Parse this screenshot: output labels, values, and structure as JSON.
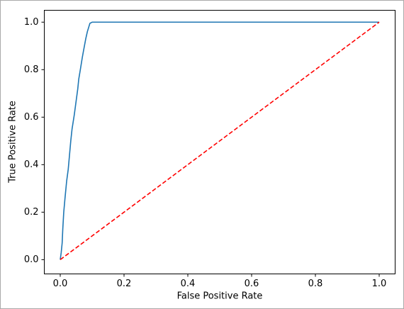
{
  "chart_data": {
    "type": "line",
    "x_label": "False Positive Rate",
    "y_label": "True Positive Rate",
    "series": [
      {
        "color": "#1f77b4",
        "dash": false,
        "x": [
          0,
          0.003,
          0.006,
          0.008,
          0.011,
          0.015,
          0.02,
          0.025,
          0.029,
          0.033,
          0.037,
          0.044,
          0.05,
          0.055,
          0.058,
          0.063,
          0.069,
          0.073,
          0.08,
          0.085,
          0.093,
          0.1,
          0.12,
          1.0
        ],
        "values": [
          0,
          0.03,
          0.07,
          0.13,
          0.2,
          0.26,
          0.33,
          0.38,
          0.44,
          0.5,
          0.55,
          0.61,
          0.67,
          0.72,
          0.76,
          0.8,
          0.85,
          0.88,
          0.93,
          0.96,
          0.995,
          1.0,
          1.0,
          1.0
        ]
      },
      {
        "color": "#ff0000",
        "dash": true,
        "x": [
          0,
          1
        ],
        "values": [
          0,
          1
        ]
      }
    ],
    "xlim": [
      -0.05,
      1.05
    ],
    "ylim": [
      -0.06,
      1.05
    ],
    "xticks": [
      {
        "value": 0,
        "label": "0.0"
      },
      0.2,
      0.4,
      0.6,
      0.8,
      {
        "value": 1,
        "label": "1.0"
      }
    ],
    "yticks": [
      {
        "value": 0,
        "label": "0.0"
      },
      0.2,
      0.4,
      0.6,
      0.8,
      {
        "value": 1,
        "label": "1.0"
      }
    ],
    "grid": false
  }
}
